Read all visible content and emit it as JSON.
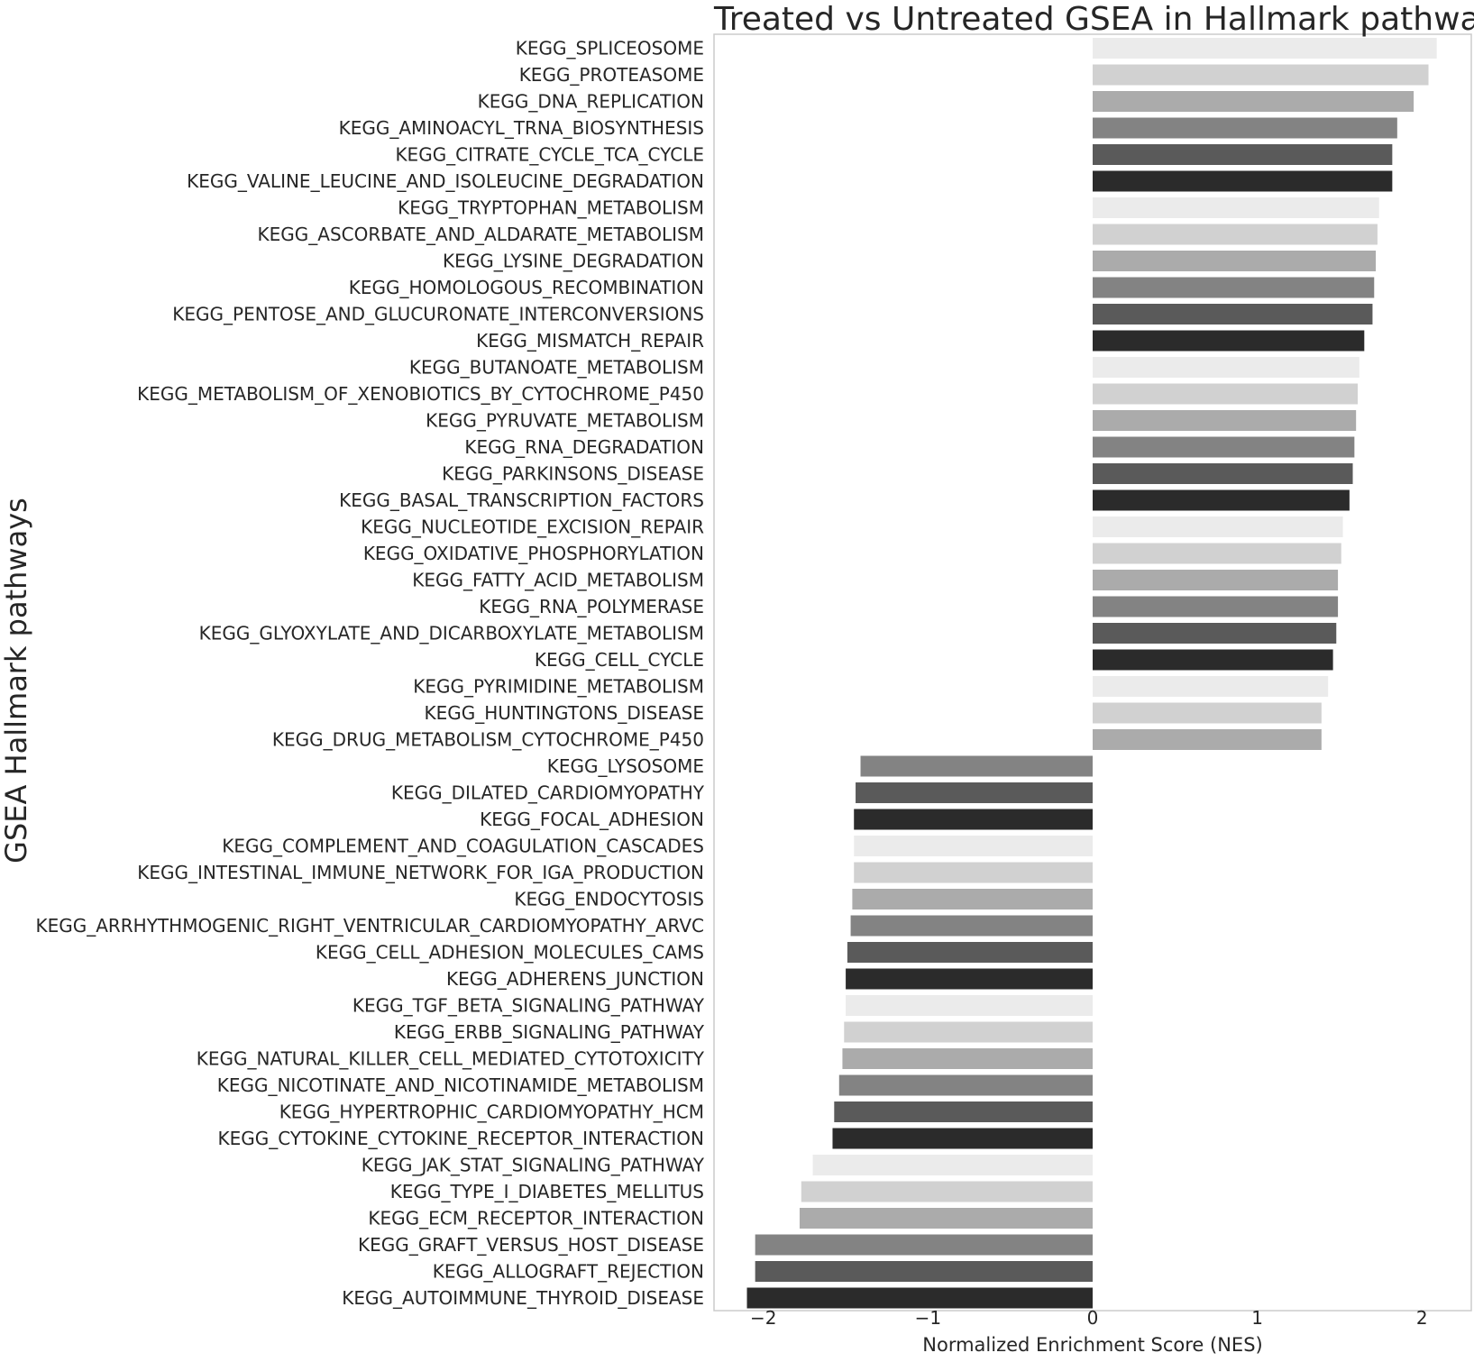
{
  "chart_data": {
    "type": "bar",
    "orientation": "horizontal",
    "title": "Treated vs Untreated GSEA in Hallmark pathways",
    "xlabel": "Normalized Enrichment Score (NES)",
    "ylabel": "GSEA Hallmark pathways",
    "xlim": [
      -2.3,
      2.3
    ],
    "xticks": [
      -2,
      -1,
      0,
      1,
      2
    ],
    "xtick_labels": [
      "−2",
      "−1",
      "0",
      "1",
      "2"
    ],
    "grid": false,
    "legend": "none",
    "palette": [
      "#ebebeb",
      "#d1d1d1",
      "#ababab",
      "#838383",
      "#5a5a5a",
      "#2b2b2b"
    ],
    "categories": [
      "KEGG_SPLICEOSOME",
      "KEGG_PROTEASOME",
      "KEGG_DNA_REPLICATION",
      "KEGG_AMINOACYL_TRNA_BIOSYNTHESIS",
      "KEGG_CITRATE_CYCLE_TCA_CYCLE",
      "KEGG_VALINE_LEUCINE_AND_ISOLEUCINE_DEGRADATION",
      "KEGG_TRYPTOPHAN_METABOLISM",
      "KEGG_ASCORBATE_AND_ALDARATE_METABOLISM",
      "KEGG_LYSINE_DEGRADATION",
      "KEGG_HOMOLOGOUS_RECOMBINATION",
      "KEGG_PENTOSE_AND_GLUCURONATE_INTERCONVERSIONS",
      "KEGG_MISMATCH_REPAIR",
      "KEGG_BUTANOATE_METABOLISM",
      "KEGG_METABOLISM_OF_XENOBIOTICS_BY_CYTOCHROME_P450",
      "KEGG_PYRUVATE_METABOLISM",
      "KEGG_RNA_DEGRADATION",
      "KEGG_PARKINSONS_DISEASE",
      "KEGG_BASAL_TRANSCRIPTION_FACTORS",
      "KEGG_NUCLEOTIDE_EXCISION_REPAIR",
      "KEGG_OXIDATIVE_PHOSPHORYLATION",
      "KEGG_FATTY_ACID_METABOLISM",
      "KEGG_RNA_POLYMERASE",
      "KEGG_GLYOXYLATE_AND_DICARBOXYLATE_METABOLISM",
      "KEGG_CELL_CYCLE",
      "KEGG_PYRIMIDINE_METABOLISM",
      "KEGG_HUNTINGTONS_DISEASE",
      "KEGG_DRUG_METABOLISM_CYTOCHROME_P450",
      "KEGG_LYSOSOME",
      "KEGG_DILATED_CARDIOMYOPATHY",
      "KEGG_FOCAL_ADHESION",
      "KEGG_COMPLEMENT_AND_COAGULATION_CASCADES",
      "KEGG_INTESTINAL_IMMUNE_NETWORK_FOR_IGA_PRODUCTION",
      "KEGG_ENDOCYTOSIS",
      "KEGG_ARRHYTHMOGENIC_RIGHT_VENTRICULAR_CARDIOMYOPATHY_ARVC",
      "KEGG_CELL_ADHESION_MOLECULES_CAMS",
      "KEGG_ADHERENS_JUNCTION",
      "KEGG_TGF_BETA_SIGNALING_PATHWAY",
      "KEGG_ERBB_SIGNALING_PATHWAY",
      "KEGG_NATURAL_KILLER_CELL_MEDIATED_CYTOTOXICITY",
      "KEGG_NICOTINATE_AND_NICOTINAMIDE_METABOLISM",
      "KEGG_HYPERTROPHIC_CARDIOMYOPATHY_HCM",
      "KEGG_CYTOKINE_CYTOKINE_RECEPTOR_INTERACTION",
      "KEGG_JAK_STAT_SIGNALING_PATHWAY",
      "KEGG_TYPE_I_DIABETES_MELLITUS",
      "KEGG_ECM_RECEPTOR_INTERACTION",
      "KEGG_GRAFT_VERSUS_HOST_DISEASE",
      "KEGG_ALLOGRAFT_REJECTION",
      "KEGG_AUTOIMMUNE_THYROID_DISEASE"
    ],
    "values": [
      2.09,
      2.04,
      1.95,
      1.85,
      1.82,
      1.82,
      1.74,
      1.73,
      1.72,
      1.71,
      1.7,
      1.65,
      1.62,
      1.61,
      1.6,
      1.59,
      1.58,
      1.56,
      1.52,
      1.51,
      1.49,
      1.49,
      1.48,
      1.46,
      1.43,
      1.39,
      1.39,
      -1.41,
      -1.44,
      -1.45,
      -1.45,
      -1.45,
      -1.46,
      -1.47,
      -1.49,
      -1.5,
      -1.5,
      -1.51,
      -1.52,
      -1.54,
      -1.57,
      -1.58,
      -1.7,
      -1.77,
      -1.78,
      -2.05,
      -2.05,
      -2.1
    ]
  }
}
